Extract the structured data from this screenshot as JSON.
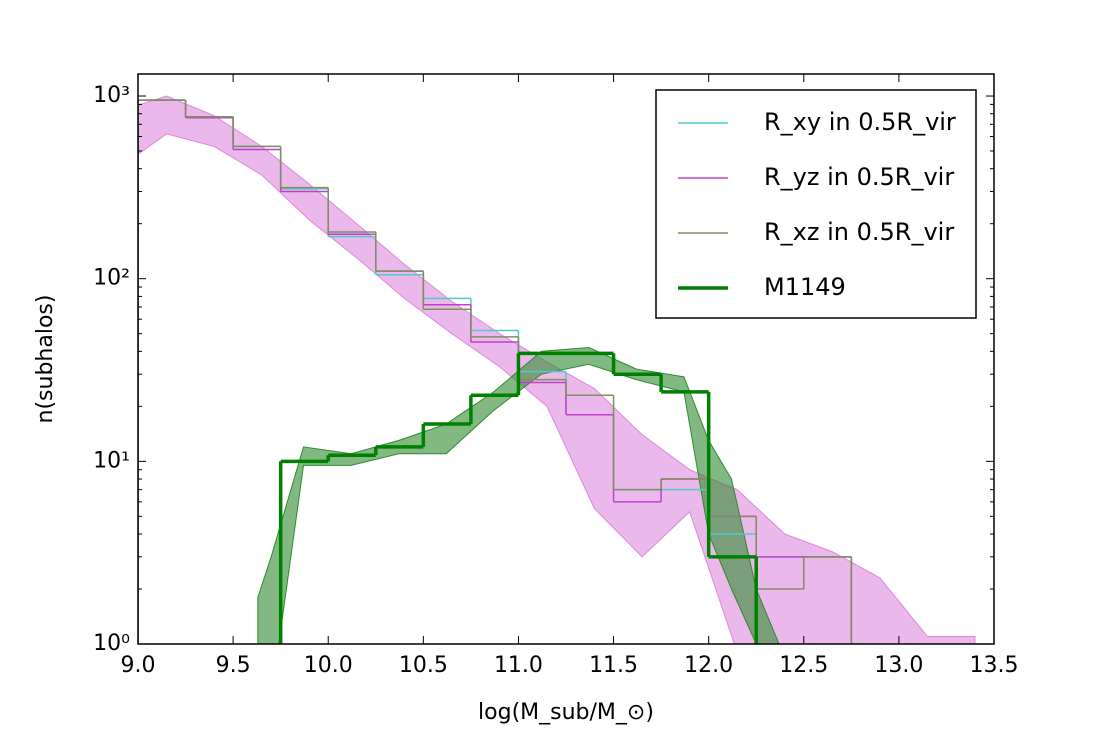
{
  "chart_data": {
    "type": "step",
    "xlabel": "log(M_sub/M_⊙)",
    "ylabel": "n(subhalos)",
    "xlim": [
      9.0,
      13.5
    ],
    "ylim": [
      1,
      1320
    ],
    "log_y": true,
    "xticks": [
      {
        "value": 9,
        "label": "9.0"
      },
      9.5,
      {
        "value": 10,
        "label": "10.0"
      },
      10.5,
      {
        "value": 11,
        "label": "11.0"
      },
      11.5,
      {
        "value": 12,
        "label": "12.0"
      },
      12.5,
      {
        "value": 13,
        "label": "13.0"
      },
      13.5
    ],
    "yticks": [
      {
        "value": 1,
        "label": "10⁰"
      },
      {
        "value": 10,
        "label": "10¹"
      },
      {
        "value": 100,
        "label": "10²"
      },
      {
        "value": 1000,
        "label": "10³"
      }
    ],
    "legend": "upper right",
    "series": [
      {
        "name": "R_xy in 0.5R_vir",
        "color": "#4ecbcb",
        "width": 1.5,
        "bins": [
          9.0,
          9.25,
          9.5,
          9.75,
          10.0,
          10.25,
          10.5,
          10.75,
          11.0,
          11.25,
          11.5,
          11.75,
          12.0,
          12.25,
          12.5,
          12.75
        ],
        "values": [
          950,
          770,
          530,
          310,
          170,
          105,
          78,
          52,
          31,
          18,
          7,
          7,
          4,
          3,
          3
        ]
      },
      {
        "name": "R_yz in 0.5R_vir",
        "color": "#c040c8",
        "width": 1.5,
        "bins": [
          9.0,
          9.25,
          9.5,
          9.75,
          10.0,
          10.25,
          10.5,
          10.75,
          11.0,
          11.25,
          11.5,
          11.75,
          12.0,
          12.25,
          12.5,
          12.75
        ],
        "values": [
          950,
          760,
          510,
          300,
          175,
          110,
          72,
          45,
          27,
          18,
          6,
          8,
          5,
          3,
          3
        ]
      },
      {
        "name": "R_xz in 0.5R_vir",
        "color": "#7f8f60",
        "width": 1.5,
        "bins": [
          9.0,
          9.25,
          9.5,
          9.75,
          10.0,
          10.25,
          10.5,
          10.75,
          11.0,
          11.25,
          11.5,
          11.75,
          12.0,
          12.25,
          12.5,
          12.75
        ],
        "values": [
          950,
          770,
          530,
          315,
          180,
          110,
          68,
          48,
          28,
          23,
          7,
          8,
          5,
          2,
          3
        ]
      },
      {
        "name": "M1149",
        "color": "#008000",
        "width": 3.5,
        "bins": [
          9.75,
          10.0,
          10.25,
          10.5,
          10.75,
          11.0,
          11.25,
          11.5,
          11.75,
          12.0,
          12.25
        ],
        "values": [
          10,
          10.8,
          12,
          16,
          23,
          39,
          39,
          30,
          24,
          3
        ]
      }
    ],
    "bands": [
      {
        "color": "#dd88dd",
        "opacity": 0.6,
        "x": [
          9.0,
          9.15,
          9.4,
          9.65,
          9.9,
          10.15,
          10.4,
          10.65,
          10.9,
          11.15,
          11.4,
          11.65,
          11.9,
          12.15,
          12.4,
          12.65,
          12.9,
          13.15,
          13.4
        ],
        "upper": [
          890,
          1000,
          780,
          530,
          330,
          200,
          120,
          75,
          50,
          35,
          25,
          14,
          9,
          7,
          4,
          3.2,
          2.3,
          1.1,
          1.1
        ],
        "lower": [
          480,
          620,
          530,
          370,
          210,
          130,
          78,
          50,
          33,
          20,
          5.5,
          3,
          5.3,
          0.9,
          0.9,
          0.9,
          0.9,
          0.9,
          0.9
        ]
      },
      {
        "color": "#2e8b2e",
        "opacity": 0.6,
        "x": [
          9.63,
          9.7,
          9.87,
          10.12,
          10.37,
          10.62,
          10.87,
          11.12,
          11.37,
          11.62,
          11.87,
          12.0,
          12.12,
          12.25,
          12.37
        ],
        "upper": [
          1.8,
          3,
          12,
          11,
          13,
          16,
          24,
          40,
          42,
          32,
          29,
          13,
          8,
          2,
          1
        ],
        "lower": [
          0.5,
          0.5,
          9.5,
          9.5,
          11,
          11,
          19,
          30,
          34,
          28,
          24,
          4,
          2,
          1,
          0.5
        ]
      }
    ]
  }
}
